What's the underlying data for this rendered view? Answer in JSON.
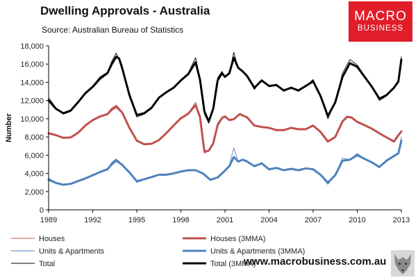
{
  "header": {
    "title": "Dwelling Approvals - Australia",
    "source": "Source:   Australian Bureau of Statistics"
  },
  "logo": {
    "line1": "MACRO",
    "line2": "BUSINESS"
  },
  "footer": {
    "url": "www.macrobusiness.com.au"
  },
  "colors": {
    "houses": "#c0504d",
    "units": "#4f81bd",
    "total": "#000000",
    "logo": "#e11d2a"
  },
  "chart_data": {
    "type": "line",
    "title": "Dwelling Approvals - Australia",
    "xlabel": "",
    "ylabel": "Number",
    "xlim": [
      1989,
      2013
    ],
    "ylim": [
      0,
      18000
    ],
    "xticks": [
      "1989",
      "1992",
      "1995",
      "1998",
      "2001",
      "2004",
      "2007",
      "2010",
      "2013"
    ],
    "yticks": [
      "0",
      "2,000",
      "4,000",
      "6,000",
      "8,000",
      "10,000",
      "12,000",
      "14,000",
      "16,000",
      "18,000"
    ],
    "grid": false,
    "legend_position": "bottom",
    "series": [
      {
        "name": "Houses",
        "color": "#c0504d",
        "width": 0.9,
        "x": [
          1989.0,
          1989.5,
          1990.0,
          1990.5,
          1991.0,
          1991.5,
          1992.0,
          1992.5,
          1993.0,
          1993.3,
          1993.6,
          1994.0,
          1994.5,
          1995.0,
          1995.5,
          1996.0,
          1996.5,
          1997.0,
          1997.5,
          1998.0,
          1998.5,
          1999.0,
          1999.3,
          1999.6,
          1999.9,
          2000.2,
          2000.5,
          2000.8,
          2001.0,
          2001.3,
          2001.6,
          2002.0,
          2002.5,
          2003.0,
          2003.5,
          2004.0,
          2004.5,
          2005.0,
          2005.5,
          2006.0,
          2006.5,
          2007.0,
          2007.5,
          2008.0,
          2008.5,
          2009.0,
          2009.3,
          2009.6,
          2010.0,
          2010.5,
          2011.0,
          2011.5,
          2012.0,
          2012.5,
          2012.8,
          2013.0
        ],
        "y": [
          8500,
          8250,
          7850,
          7900,
          8500,
          9300,
          9900,
          10300,
          10600,
          11200,
          11500,
          10800,
          9000,
          7500,
          7150,
          7200,
          7600,
          8400,
          9300,
          10100,
          10600,
          11800,
          10300,
          6200,
          6500,
          7400,
          9500,
          10200,
          10300,
          9800,
          9900,
          10600,
          10200,
          9200,
          9100,
          9000,
          8700,
          8700,
          9000,
          8800,
          8800,
          9300,
          8500,
          7400,
          8000,
          9800,
          10300,
          10200,
          9600,
          9300,
          8900,
          8400,
          7900,
          7400,
          8300,
          8700
        ]
      },
      {
        "name": "Houses (3MMA)",
        "color": "#c0504d",
        "width": 3,
        "x": [
          1989.0,
          1989.5,
          1990.0,
          1990.5,
          1991.0,
          1991.5,
          1992.0,
          1992.5,
          1993.0,
          1993.3,
          1993.6,
          1994.0,
          1994.5,
          1995.0,
          1995.5,
          1996.0,
          1996.5,
          1997.0,
          1997.5,
          1998.0,
          1998.5,
          1999.0,
          1999.3,
          1999.6,
          1999.9,
          2000.2,
          2000.5,
          2000.8,
          2001.0,
          2001.3,
          2001.6,
          2002.0,
          2002.5,
          2003.0,
          2003.5,
          2004.0,
          2004.5,
          2005.0,
          2005.5,
          2006.0,
          2006.5,
          2007.0,
          2007.5,
          2008.0,
          2008.5,
          2009.0,
          2009.3,
          2009.6,
          2010.0,
          2010.5,
          2011.0,
          2011.5,
          2012.0,
          2012.5,
          2012.8,
          2013.0
        ],
        "y": [
          8400,
          8200,
          7900,
          7950,
          8450,
          9250,
          9850,
          10250,
          10500,
          11000,
          11300,
          10700,
          9000,
          7600,
          7200,
          7250,
          7650,
          8400,
          9250,
          10050,
          10550,
          11500,
          10200,
          6400,
          6500,
          7300,
          9300,
          10100,
          10250,
          9850,
          9950,
          10500,
          10150,
          9250,
          9100,
          9000,
          8750,
          8750,
          9000,
          8850,
          8850,
          9250,
          8550,
          7500,
          8000,
          9700,
          10200,
          10150,
          9650,
          9300,
          8900,
          8400,
          7950,
          7500,
          8200,
          8600
        ]
      },
      {
        "name": "Units & Apartments",
        "color": "#4f81bd",
        "width": 0.9,
        "x": [
          1989.0,
          1989.5,
          1990.0,
          1990.5,
          1991.0,
          1991.5,
          1992.0,
          1992.5,
          1993.0,
          1993.3,
          1993.6,
          1994.0,
          1994.5,
          1995.0,
          1995.5,
          1996.0,
          1996.5,
          1997.0,
          1997.5,
          1998.0,
          1998.5,
          1999.0,
          1999.5,
          2000.0,
          2000.5,
          2001.0,
          2001.3,
          2001.6,
          2001.9,
          2002.2,
          2002.5,
          2003.0,
          2003.5,
          2004.0,
          2004.5,
          2005.0,
          2005.5,
          2006.0,
          2006.5,
          2007.0,
          2007.5,
          2008.0,
          2008.5,
          2009.0,
          2009.5,
          2010.0,
          2010.5,
          2011.0,
          2011.5,
          2012.0,
          2012.5,
          2012.8,
          2013.0
        ],
        "y": [
          3500,
          3000,
          2700,
          2800,
          3200,
          3500,
          3800,
          4200,
          4500,
          5200,
          5600,
          5000,
          4100,
          3000,
          3300,
          3600,
          3900,
          3800,
          4000,
          4200,
          4400,
          4400,
          4000,
          3200,
          3500,
          4400,
          4900,
          6800,
          5200,
          5600,
          5400,
          4700,
          5200,
          4400,
          4600,
          4300,
          4500,
          4300,
          4600,
          4500,
          3800,
          2800,
          3800,
          5700,
          5500,
          6200,
          5600,
          5200,
          4600,
          5500,
          6000,
          6300,
          8000
        ]
      },
      {
        "name": "Units & Apartments (3MMA)",
        "color": "#4f81bd",
        "width": 3,
        "x": [
          1989.0,
          1989.5,
          1990.0,
          1990.5,
          1991.0,
          1991.5,
          1992.0,
          1992.5,
          1993.0,
          1993.3,
          1993.6,
          1994.0,
          1994.5,
          1995.0,
          1995.5,
          1996.0,
          1996.5,
          1997.0,
          1997.5,
          1998.0,
          1998.5,
          1999.0,
          1999.5,
          2000.0,
          2000.5,
          2001.0,
          2001.3,
          2001.6,
          2001.9,
          2002.2,
          2002.5,
          2003.0,
          2003.5,
          2004.0,
          2004.5,
          2005.0,
          2005.5,
          2006.0,
          2006.5,
          2007.0,
          2007.5,
          2008.0,
          2008.5,
          2009.0,
          2009.5,
          2010.0,
          2010.5,
          2011.0,
          2011.5,
          2012.0,
          2012.5,
          2012.8,
          2013.0
        ],
        "y": [
          3300,
          2950,
          2750,
          2850,
          3150,
          3450,
          3800,
          4150,
          4450,
          5000,
          5400,
          4950,
          4100,
          3150,
          3350,
          3600,
          3850,
          3850,
          4000,
          4200,
          4350,
          4350,
          4000,
          3300,
          3550,
          4300,
          4800,
          5800,
          5300,
          5500,
          5300,
          4800,
          5100,
          4450,
          4600,
          4350,
          4500,
          4350,
          4550,
          4450,
          3850,
          3000,
          3800,
          5400,
          5500,
          6000,
          5600,
          5200,
          4700,
          5400,
          5900,
          6200,
          7600
        ]
      },
      {
        "name": "Total",
        "color": "#000000",
        "width": 0.9,
        "x": [
          1989.0,
          1989.5,
          1990.0,
          1990.5,
          1991.0,
          1991.5,
          1992.0,
          1992.5,
          1993.0,
          1993.3,
          1993.6,
          1993.8,
          1994.0,
          1994.5,
          1995.0,
          1995.5,
          1996.0,
          1996.5,
          1997.0,
          1997.5,
          1998.0,
          1998.5,
          1999.0,
          1999.3,
          1999.6,
          1999.9,
          2000.2,
          2000.5,
          2000.8,
          2001.0,
          2001.3,
          2001.6,
          2001.9,
          2002.2,
          2002.5,
          2003.0,
          2003.5,
          2004.0,
          2004.5,
          2005.0,
          2005.5,
          2006.0,
          2006.5,
          2007.0,
          2007.5,
          2008.0,
          2008.5,
          2009.0,
          2009.5,
          2010.0,
          2010.5,
          2011.0,
          2011.5,
          2012.0,
          2012.5,
          2012.8,
          2013.0
        ],
        "y": [
          12300,
          11200,
          10500,
          10800,
          11800,
          12900,
          13600,
          14600,
          15100,
          16300,
          17200,
          16500,
          15900,
          12500,
          10200,
          10500,
          11100,
          12300,
          12900,
          13400,
          14300,
          15000,
          16700,
          14500,
          10500,
          9500,
          11200,
          14500,
          15200,
          14500,
          15000,
          17300,
          15500,
          15200,
          14800,
          13200,
          14300,
          13500,
          13800,
          13000,
          13500,
          13000,
          13600,
          14300,
          12400,
          10000,
          11800,
          15000,
          16500,
          15900,
          14700,
          13600,
          12000,
          12500,
          13500,
          14200,
          16800
        ]
      },
      {
        "name": "Total (3MMA)",
        "color": "#000000",
        "width": 3,
        "x": [
          1989.0,
          1989.5,
          1990.0,
          1990.5,
          1991.0,
          1991.5,
          1992.0,
          1992.5,
          1993.0,
          1993.3,
          1993.6,
          1993.8,
          1994.0,
          1994.5,
          1995.0,
          1995.5,
          1996.0,
          1996.5,
          1997.0,
          1997.5,
          1998.0,
          1998.5,
          1999.0,
          1999.3,
          1999.6,
          1999.9,
          2000.2,
          2000.5,
          2000.8,
          2001.0,
          2001.3,
          2001.6,
          2001.9,
          2002.2,
          2002.5,
          2003.0,
          2003.5,
          2004.0,
          2004.5,
          2005.0,
          2005.5,
          2006.0,
          2006.5,
          2007.0,
          2007.5,
          2008.0,
          2008.5,
          2009.0,
          2009.5,
          2010.0,
          2010.5,
          2011.0,
          2011.5,
          2012.0,
          2012.5,
          2012.8,
          2013.0
        ],
        "y": [
          12000,
          11100,
          10600,
          10900,
          11800,
          12800,
          13500,
          14400,
          15000,
          16000,
          16800,
          16600,
          15600,
          12600,
          10400,
          10600,
          11200,
          12300,
          12900,
          13400,
          14200,
          14900,
          16200,
          14300,
          10800,
          9700,
          11100,
          14200,
          15000,
          14600,
          15000,
          16700,
          15600,
          15200,
          14700,
          13400,
          14200,
          13600,
          13700,
          13100,
          13400,
          13100,
          13600,
          14100,
          12500,
          10300,
          11800,
          14600,
          16100,
          15700,
          14600,
          13500,
          12200,
          12600,
          13400,
          14100,
          16500
        ]
      }
    ]
  }
}
